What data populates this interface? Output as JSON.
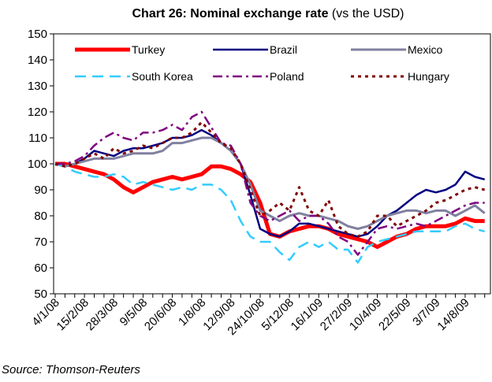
{
  "chart_data": {
    "type": "line",
    "title": "Chart 26:  Nominal exchange rate",
    "title_note": "(vs the USD)",
    "source": "Source: Thomson-Reuters",
    "categories": [
      "4/1/08",
      null,
      null,
      "15/2/08",
      null,
      null,
      "28/3/08",
      null,
      null,
      "9/5/08",
      null,
      null,
      "20/6/08",
      null,
      null,
      "1/8/08",
      null,
      null,
      "12/9/08",
      null,
      null,
      "24/10/08",
      null,
      null,
      "5/12/08",
      null,
      null,
      "16/1/09",
      null,
      null,
      "27/2/09",
      null,
      null,
      "10/4/09",
      null,
      null,
      "22/5/09",
      null,
      null,
      "3/7/09",
      null,
      null,
      "14/8/09",
      null,
      null
    ],
    "ylim": [
      50,
      150
    ],
    "yticks": [
      50,
      60,
      70,
      80,
      90,
      100,
      110,
      120,
      130,
      140,
      150
    ],
    "series": [
      {
        "name": "Turkey",
        "color": "#ff0000",
        "width": 5,
        "dash": "solid",
        "values": [
          100,
          100,
          99,
          98,
          97,
          96,
          94,
          91,
          89,
          91,
          93,
          94,
          95,
          94,
          95,
          96,
          99,
          99,
          98,
          96,
          93,
          85,
          73,
          72,
          74,
          75,
          76,
          76,
          75,
          73,
          72,
          71,
          70,
          68,
          70,
          72,
          73,
          75,
          76,
          76,
          76,
          77,
          79,
          78,
          78
        ]
      },
      {
        "name": "Brazil",
        "color": "#000080",
        "width": 2.5,
        "dash": "solid",
        "values": [
          100,
          99,
          100,
          102,
          105,
          104,
          103,
          105,
          106,
          106,
          107,
          108,
          110,
          110,
          111,
          113,
          111,
          108,
          105,
          100,
          88,
          75,
          73,
          72,
          74,
          77,
          77,
          76,
          75,
          74,
          73,
          72,
          73,
          76,
          80,
          82,
          85,
          88,
          90,
          89,
          90,
          92,
          97,
          95,
          94
        ]
      },
      {
        "name": "Mexico",
        "color": "#8080a0",
        "width": 3,
        "dash": "solid",
        "values": [
          100,
          99,
          100,
          101,
          102,
          102,
          102,
          103,
          104,
          104,
          104,
          105,
          108,
          108,
          109,
          110,
          110,
          108,
          105,
          100,
          92,
          82,
          80,
          78,
          80,
          81,
          80,
          80,
          79,
          78,
          76,
          75,
          76,
          78,
          80,
          81,
          82,
          82,
          81,
          82,
          82,
          80,
          82,
          84,
          81
        ]
      },
      {
        "name": "South Korea",
        "color": "#33ccff",
        "width": 2.5,
        "dash": "dashed",
        "values": [
          100,
          99,
          97,
          96,
          95,
          95,
          96,
          95,
          92,
          93,
          92,
          91,
          90,
          91,
          90,
          92,
          92,
          90,
          86,
          78,
          72,
          70,
          70,
          66,
          63,
          68,
          70,
          68,
          70,
          67,
          67,
          62,
          68,
          70,
          71,
          72,
          73,
          74,
          74,
          74,
          74,
          76,
          77,
          75,
          74
        ]
      },
      {
        "name": "Poland",
        "color": "#800080",
        "width": 2.5,
        "dash": "dashdot",
        "values": [
          100,
          100,
          101,
          103,
          107,
          110,
          112,
          110,
          109,
          112,
          112,
          113,
          115,
          113,
          118,
          120,
          114,
          108,
          107,
          100,
          85,
          80,
          78,
          80,
          82,
          78,
          80,
          80,
          77,
          72,
          70,
          65,
          70,
          75,
          76,
          75,
          76,
          77,
          76,
          78,
          80,
          82,
          84,
          85,
          85
        ]
      },
      {
        "name": "Hungary",
        "color": "#800000",
        "width": 3,
        "dash": "dotted",
        "values": [
          100,
          99,
          100,
          102,
          104,
          102,
          106,
          104,
          105,
          107,
          106,
          108,
          110,
          110,
          112,
          116,
          112,
          108,
          106,
          100,
          90,
          80,
          82,
          85,
          82,
          91,
          82,
          80,
          86,
          76,
          73,
          72,
          74,
          80,
          80,
          76,
          78,
          80,
          82,
          85,
          86,
          88,
          90,
          91,
          90
        ]
      }
    ]
  }
}
